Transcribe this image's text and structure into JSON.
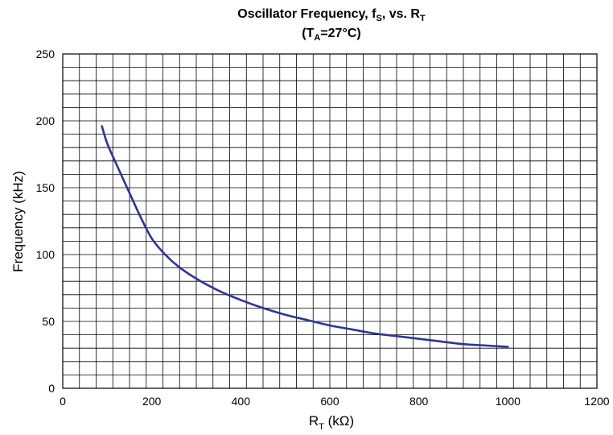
{
  "chart_data": {
    "type": "line",
    "title": {
      "line1": {
        "main": "Oscillator Frequency, f",
        "sub1": "S",
        "mid": ", vs. R",
        "sub2": "T"
      },
      "line2": {
        "open": "(T",
        "sub": "A",
        "rest": "=27°C)"
      }
    },
    "xlabel": {
      "main": "R",
      "sub": "T",
      "unit": " (kΩ)"
    },
    "ylabel": "Frequency (kHz)",
    "xlim": [
      0,
      1200
    ],
    "ylim": [
      0,
      250
    ],
    "x_ticks": [
      "0",
      "200",
      "400",
      "600",
      "800",
      "1000",
      "1200"
    ],
    "y_ticks": [
      "0",
      "50",
      "100",
      "150",
      "200",
      "250"
    ],
    "grid": true,
    "color": "#2e3592",
    "series": [
      {
        "x": [
          88,
          100,
          120,
          150,
          175,
          200,
          230,
          260,
          300,
          350,
          400,
          450,
          500,
          550,
          600,
          650,
          700,
          750,
          800,
          850,
          900,
          950,
          1000
        ],
        "y": [
          196,
          183,
          168,
          146,
          128,
          112,
          100,
          91,
          82,
          73,
          66,
          60,
          55,
          51,
          47,
          44,
          41,
          39,
          37,
          35,
          33,
          32,
          31
        ]
      }
    ]
  }
}
